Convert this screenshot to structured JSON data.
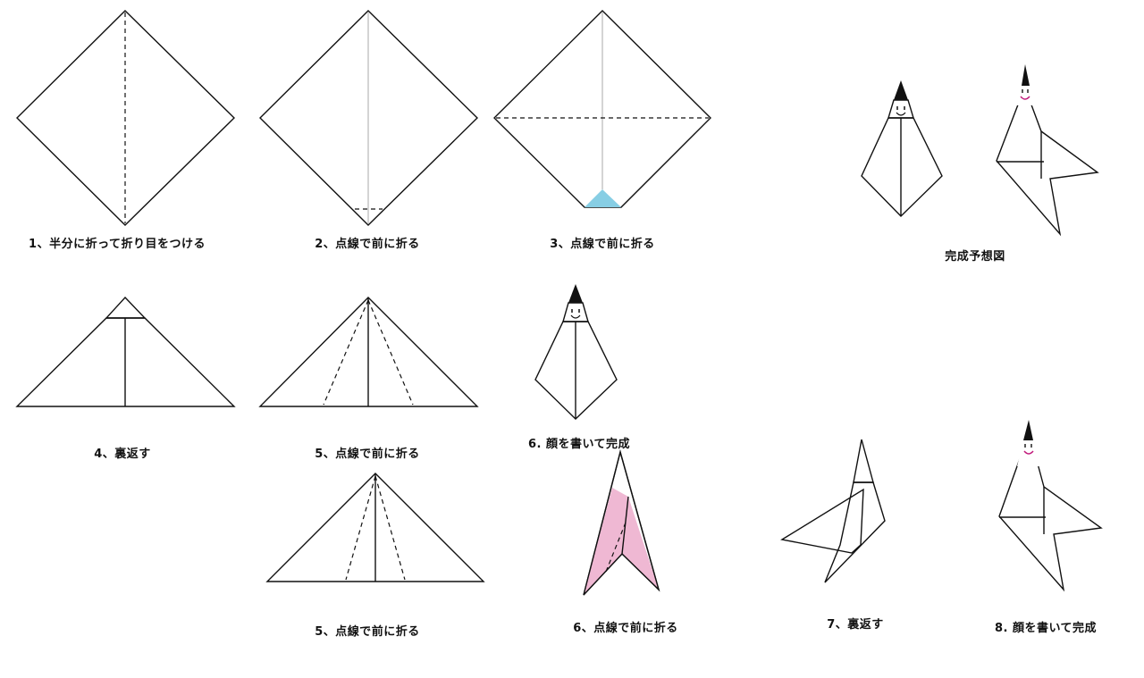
{
  "colors": {
    "paper_white": "#ffffff",
    "paper_blue": "#87cee4",
    "paper_pink": "#efb8d3",
    "line": "#111111",
    "crease": "#aaaaaa",
    "hair": "#111111",
    "mouth": "#c0187a"
  },
  "captions": {
    "step1": "1、半分に折って折り目をつける",
    "step2": "2、点線で前に折る",
    "step3": "3、点線で前に折る",
    "finished_preview": "完成予想図",
    "step4": "4、裏返す",
    "step5_blue": "5、点線で前に折る",
    "step6_blue": "6. 顔を書いて完成",
    "step5_pink": "5、点線で前に折る",
    "step6_pink": "6、点線で前に折る",
    "step7_pink": "7、裏返す",
    "step8_pink": "8. 顔を書いて完成"
  }
}
